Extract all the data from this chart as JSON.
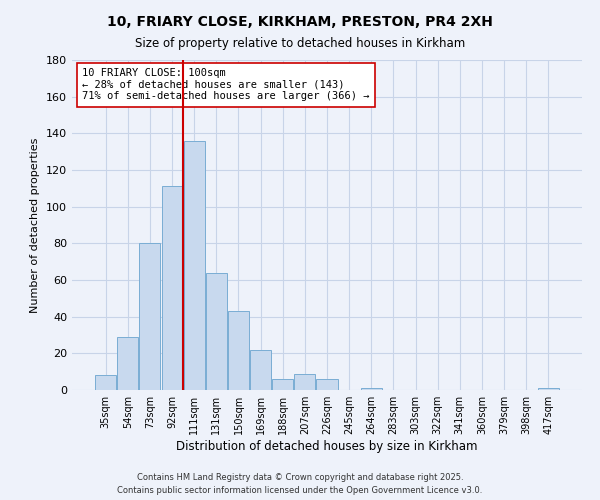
{
  "title": "10, FRIARY CLOSE, KIRKHAM, PRESTON, PR4 2XH",
  "subtitle": "Size of property relative to detached houses in Kirkham",
  "xlabel": "Distribution of detached houses by size in Kirkham",
  "ylabel": "Number of detached properties",
  "bar_color": "#c8d9ee",
  "bar_edge_color": "#7aadd4",
  "grid_color": "#c8d4e8",
  "background_color": "#eef2fa",
  "bins": [
    "35sqm",
    "54sqm",
    "73sqm",
    "92sqm",
    "111sqm",
    "131sqm",
    "150sqm",
    "169sqm",
    "188sqm",
    "207sqm",
    "226sqm",
    "245sqm",
    "264sqm",
    "283sqm",
    "303sqm",
    "322sqm",
    "341sqm",
    "360sqm",
    "379sqm",
    "398sqm",
    "417sqm"
  ],
  "values": [
    8,
    29,
    80,
    111,
    136,
    64,
    43,
    22,
    6,
    9,
    6,
    0,
    1,
    0,
    0,
    0,
    0,
    0,
    0,
    0,
    1
  ],
  "vline_color": "#cc0000",
  "vline_pos": 3.5,
  "annotation_title": "10 FRIARY CLOSE: 100sqm",
  "annotation_line1": "← 28% of detached houses are smaller (143)",
  "annotation_line2": "71% of semi-detached houses are larger (366) →",
  "annotation_box_color": "#ffffff",
  "annotation_box_edge": "#cc0000",
  "ylim": [
    0,
    180
  ],
  "yticks": [
    0,
    20,
    40,
    60,
    80,
    100,
    120,
    140,
    160,
    180
  ],
  "footer1": "Contains HM Land Registry data © Crown copyright and database right 2025.",
  "footer2": "Contains public sector information licensed under the Open Government Licence v3.0."
}
